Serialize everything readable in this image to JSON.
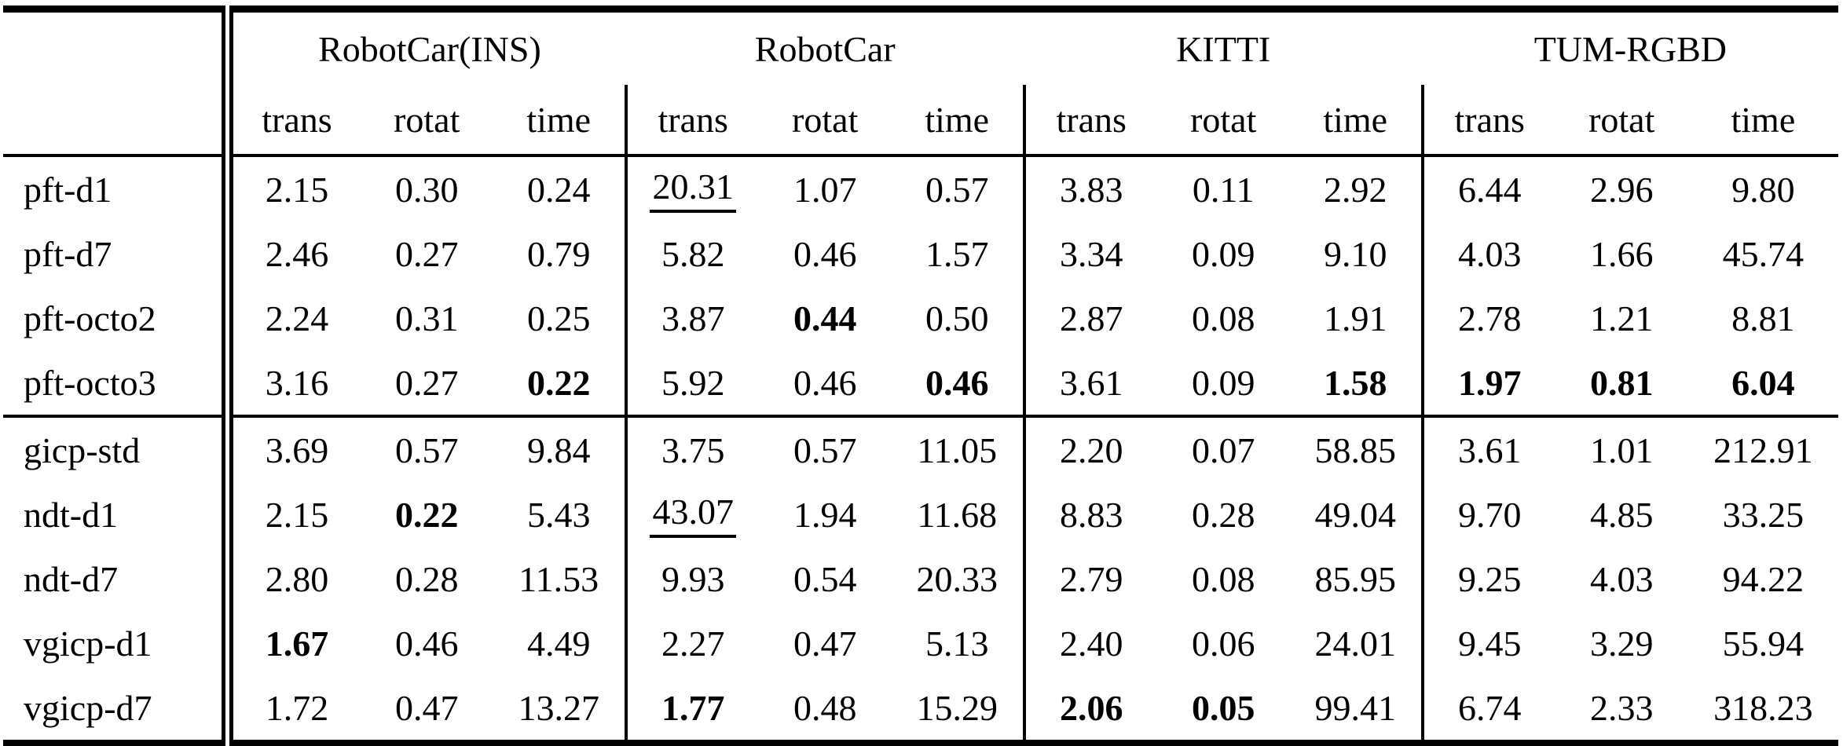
{
  "colors": {
    "text": "#000000",
    "background": "#ffffff",
    "rule": "#000000"
  },
  "table": {
    "corner_label": "",
    "groups": [
      "RobotCar(INS)",
      "RobotCar",
      "KITTI",
      "TUM-RGBD"
    ],
    "sub_columns": [
      "trans",
      "rotat",
      "time"
    ],
    "rows": [
      {
        "label": "pft-d1",
        "cells": [
          {
            "v": "2.15"
          },
          {
            "v": "0.30"
          },
          {
            "v": "0.24"
          },
          {
            "v": "20.31",
            "underline": true
          },
          {
            "v": "1.07"
          },
          {
            "v": "0.57"
          },
          {
            "v": "3.83"
          },
          {
            "v": "0.11"
          },
          {
            "v": "2.92"
          },
          {
            "v": "6.44"
          },
          {
            "v": "2.96"
          },
          {
            "v": "9.80"
          }
        ]
      },
      {
        "label": "pft-d7",
        "cells": [
          {
            "v": "2.46"
          },
          {
            "v": "0.27"
          },
          {
            "v": "0.79"
          },
          {
            "v": "5.82"
          },
          {
            "v": "0.46"
          },
          {
            "v": "1.57"
          },
          {
            "v": "3.34"
          },
          {
            "v": "0.09"
          },
          {
            "v": "9.10"
          },
          {
            "v": "4.03"
          },
          {
            "v": "1.66"
          },
          {
            "v": "45.74"
          }
        ]
      },
      {
        "label": "pft-octo2",
        "cells": [
          {
            "v": "2.24"
          },
          {
            "v": "0.31"
          },
          {
            "v": "0.25"
          },
          {
            "v": "3.87"
          },
          {
            "v": "0.44",
            "bold": true
          },
          {
            "v": "0.50"
          },
          {
            "v": "2.87"
          },
          {
            "v": "0.08"
          },
          {
            "v": "1.91"
          },
          {
            "v": "2.78"
          },
          {
            "v": "1.21"
          },
          {
            "v": "8.81"
          }
        ]
      },
      {
        "label": "pft-octo3",
        "cells": [
          {
            "v": "3.16"
          },
          {
            "v": "0.27"
          },
          {
            "v": "0.22",
            "bold": true
          },
          {
            "v": "5.92"
          },
          {
            "v": "0.46"
          },
          {
            "v": "0.46",
            "bold": true
          },
          {
            "v": "3.61"
          },
          {
            "v": "0.09"
          },
          {
            "v": "1.58",
            "bold": true
          },
          {
            "v": "1.97",
            "bold": true
          },
          {
            "v": "0.81",
            "bold": true
          },
          {
            "v": "6.04",
            "bold": true
          }
        ]
      },
      {
        "label": "gicp-std",
        "rule_above": true,
        "cells": [
          {
            "v": "3.69"
          },
          {
            "v": "0.57"
          },
          {
            "v": "9.84"
          },
          {
            "v": "3.75"
          },
          {
            "v": "0.57"
          },
          {
            "v": "11.05"
          },
          {
            "v": "2.20"
          },
          {
            "v": "0.07"
          },
          {
            "v": "58.85"
          },
          {
            "v": "3.61"
          },
          {
            "v": "1.01"
          },
          {
            "v": "212.91"
          }
        ]
      },
      {
        "label": "ndt-d1",
        "cells": [
          {
            "v": "2.15"
          },
          {
            "v": "0.22",
            "bold": true
          },
          {
            "v": "5.43"
          },
          {
            "v": "43.07",
            "underline": true
          },
          {
            "v": "1.94"
          },
          {
            "v": "11.68"
          },
          {
            "v": "8.83"
          },
          {
            "v": "0.28"
          },
          {
            "v": "49.04"
          },
          {
            "v": "9.70"
          },
          {
            "v": "4.85"
          },
          {
            "v": "33.25"
          }
        ]
      },
      {
        "label": "ndt-d7",
        "cells": [
          {
            "v": "2.80"
          },
          {
            "v": "0.28"
          },
          {
            "v": "11.53"
          },
          {
            "v": "9.93"
          },
          {
            "v": "0.54"
          },
          {
            "v": "20.33"
          },
          {
            "v": "2.79"
          },
          {
            "v": "0.08"
          },
          {
            "v": "85.95"
          },
          {
            "v": "9.25"
          },
          {
            "v": "4.03"
          },
          {
            "v": "94.22"
          }
        ]
      },
      {
        "label": "vgicp-d1",
        "cells": [
          {
            "v": "1.67",
            "bold": true
          },
          {
            "v": "0.46"
          },
          {
            "v": "4.49"
          },
          {
            "v": "2.27"
          },
          {
            "v": "0.47"
          },
          {
            "v": "5.13"
          },
          {
            "v": "2.40"
          },
          {
            "v": "0.06"
          },
          {
            "v": "24.01"
          },
          {
            "v": "9.45"
          },
          {
            "v": "3.29"
          },
          {
            "v": "55.94"
          }
        ]
      },
      {
        "label": "vgicp-d7",
        "cells": [
          {
            "v": "1.72"
          },
          {
            "v": "0.47"
          },
          {
            "v": "13.27"
          },
          {
            "v": "1.77",
            "bold": true
          },
          {
            "v": "0.48"
          },
          {
            "v": "15.29"
          },
          {
            "v": "2.06",
            "bold": true
          },
          {
            "v": "0.05",
            "bold": true
          },
          {
            "v": "99.41"
          },
          {
            "v": "6.74"
          },
          {
            "v": "2.33"
          },
          {
            "v": "318.23"
          }
        ]
      }
    ]
  }
}
